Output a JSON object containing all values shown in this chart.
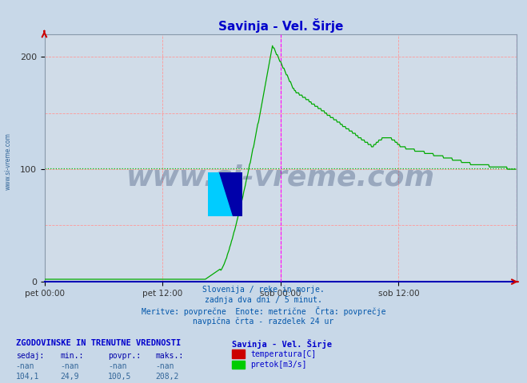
{
  "title": "Savinja - Vel. Širje",
  "title_color": "#0000cc",
  "bg_color": "#c8d8e8",
  "plot_bg_color": "#d0dce8",
  "grid_color": "#ff9999",
  "avg_line_color": "#00bb00",
  "avg_line_value": 100.5,
  "xlim": [
    0,
    576
  ],
  "ylim": [
    0,
    220
  ],
  "yticks": [
    0,
    100,
    200
  ],
  "xlabel_ticks": [
    0,
    144,
    288,
    432,
    576
  ],
  "xlabel_labels": [
    "pet 00:00",
    "pet 12:00",
    "sob 00:00",
    "sob 12:00",
    ""
  ],
  "magenta_vlines": [
    288,
    576
  ],
  "flow_color": "#00aa00",
  "temp_color": "#cc0000",
  "watermark_text": "www.si-vreme.com",
  "watermark_color": "#1a3060",
  "watermark_alpha": 0.3,
  "footer_lines": [
    "Slovenija / reke in morje.",
    "zadnja dva dni / 5 minut.",
    "Meritve: povprečne  Enote: metrične  Črta: povprečje",
    "navpična črta - razdelek 24 ur"
  ],
  "footer_color": "#0055aa",
  "stats_header": "ZGODOVINSKE IN TRENUTNE VREDNOSTI",
  "stats_cols": [
    "sedaj:",
    "min.:",
    "povpr.:",
    "maks.:"
  ],
  "stats_row1": [
    "-nan",
    "-nan",
    "-nan",
    "-nan"
  ],
  "stats_row2": [
    "104,1",
    "24,9",
    "100,5",
    "208,2"
  ],
  "legend_title": "Savinja - Vel. Širje",
  "legend_items": [
    {
      "label": "temperatura[C]",
      "color": "#cc0000"
    },
    {
      "label": "pretok[m3/s]",
      "color": "#00cc00"
    }
  ],
  "sidebar_text": "www.si-vreme.com",
  "sidebar_color": "#336699"
}
